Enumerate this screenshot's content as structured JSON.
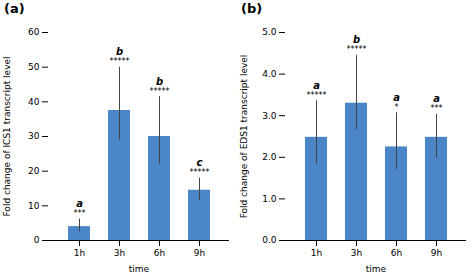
{
  "chart_data": [
    {
      "type": "bar",
      "title": "(a)",
      "xlabel": "time",
      "ylabel": "Fold change of ICS1 transcript level",
      "categories": [
        "1h",
        "3h",
        "6h",
        "9h"
      ],
      "values": [
        4.0,
        37.5,
        30.0,
        14.5
      ],
      "errors_pos": [
        2.2,
        12.5,
        11.5,
        3.5
      ],
      "errors_neg": [
        1.5,
        8.5,
        8.0,
        3.0
      ],
      "color": "#4a86c8",
      "ylim": [
        0,
        60
      ],
      "yticks": [
        0,
        10,
        20,
        30,
        40,
        50,
        60
      ],
      "letter_labels": [
        "a",
        "b",
        "b",
        "c"
      ],
      "star_labels": [
        "***",
        "*****",
        "*****",
        "*****"
      ]
    },
    {
      "type": "bar",
      "title": "(b)",
      "xlabel": "time",
      "ylabel": "Fold change of EDS1 transcript level",
      "categories": [
        "1h",
        "3h",
        "6h",
        "9h"
      ],
      "values": [
        2.48,
        3.3,
        2.25,
        2.48
      ],
      "errors_pos": [
        0.88,
        1.15,
        0.82,
        0.55
      ],
      "errors_neg": [
        0.65,
        0.65,
        0.55,
        0.5
      ],
      "color": "#4a86c8",
      "ylim": [
        0,
        5
      ],
      "yticks": [
        0,
        1,
        2,
        3,
        4,
        5
      ],
      "letter_labels": [
        "a",
        "b",
        "a",
        "a"
      ],
      "star_labels": [
        "*****",
        "*****",
        "*",
        "***"
      ]
    }
  ]
}
